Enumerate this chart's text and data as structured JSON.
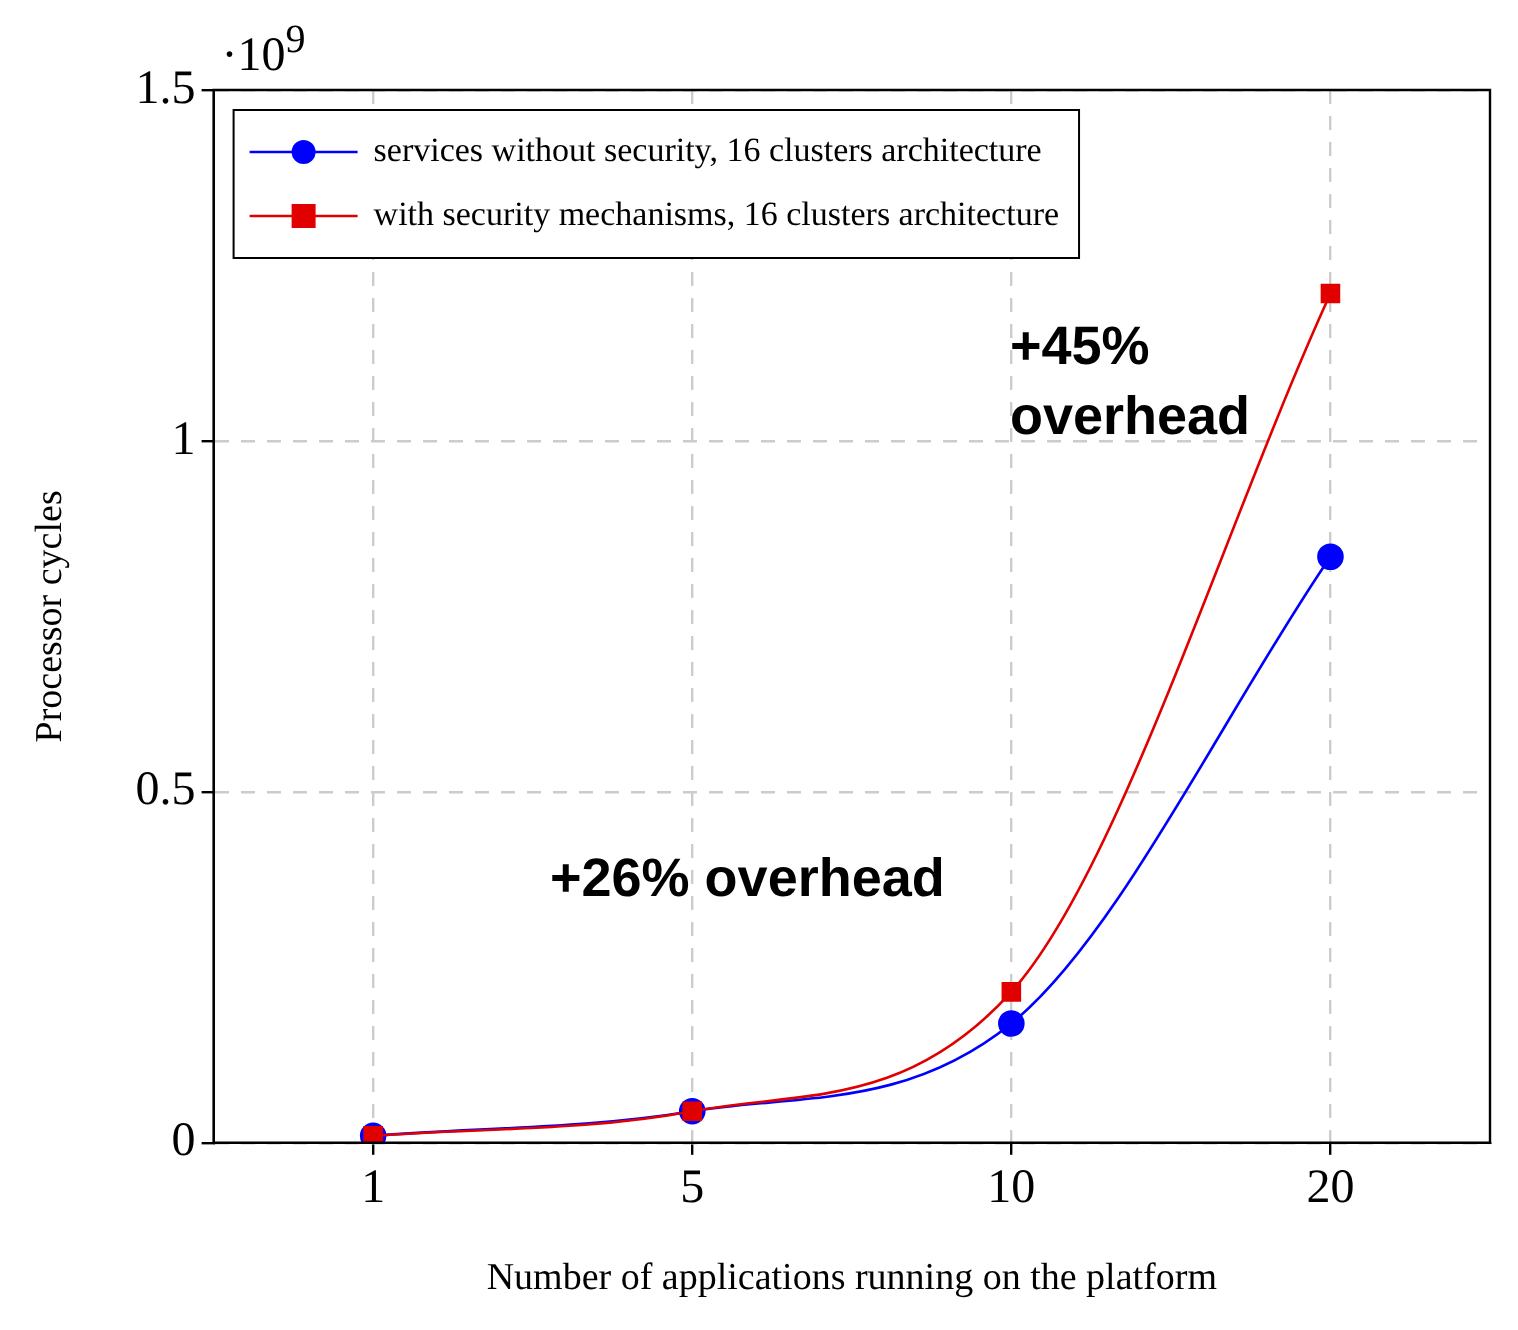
{
  "chart_data": {
    "type": "line",
    "xlabel": "Number of applications running on the platform",
    "ylabel": "Processor cycles",
    "categories": [
      "1",
      "5",
      "10",
      "20"
    ],
    "series": [
      {
        "name": "services without security, 16 clusters architecture",
        "color": "#0000ff",
        "marker": "circle",
        "values": [
          0.01,
          0.045,
          0.17,
          0.835
        ]
      },
      {
        "name": "with security mechanisms, 16 clusters architecture",
        "color": "#e00000",
        "marker": "square",
        "values": [
          0.01,
          0.045,
          0.215,
          1.21
        ]
      }
    ],
    "ylim": [
      0,
      1.5
    ],
    "yticks": [
      0,
      0.5,
      1,
      1.5
    ],
    "grid": true,
    "legend": "top left",
    "line_style": "solid",
    "annotations": [
      "·10$^{9}$",
      "+45% overhead",
      "+26% overhead"
    ]
  }
}
